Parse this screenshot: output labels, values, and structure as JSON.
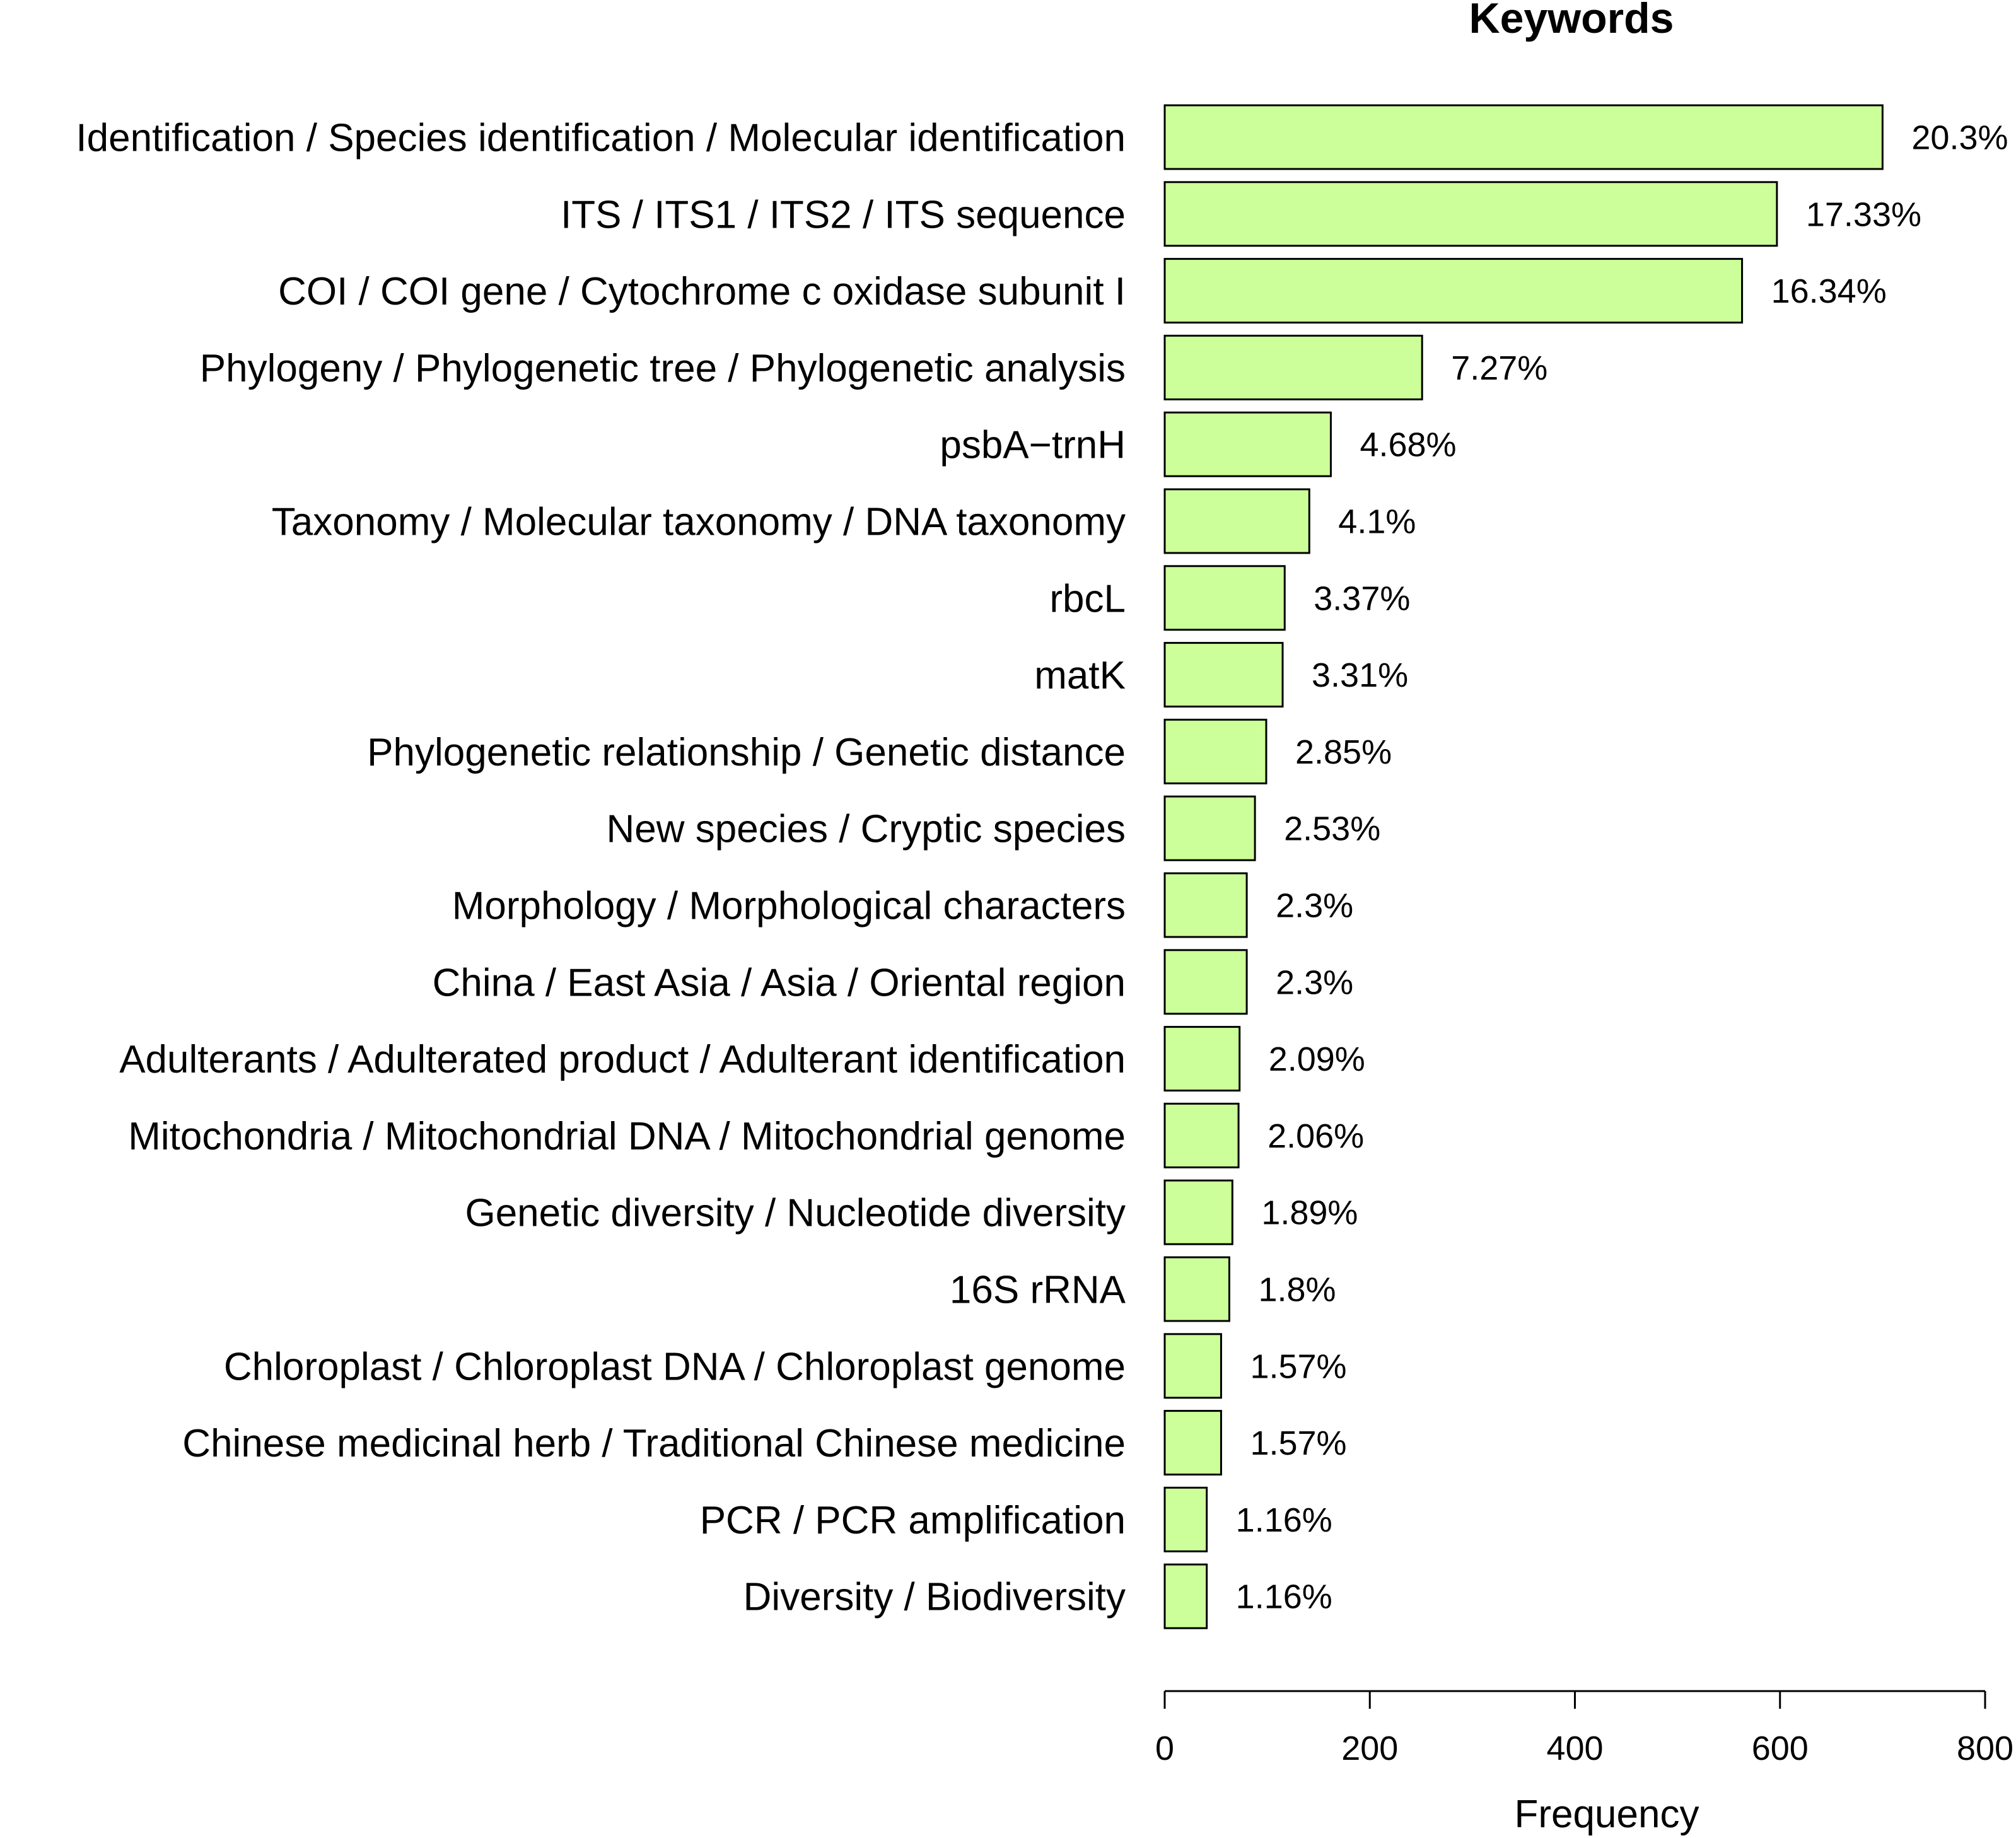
{
  "chart_data": {
    "type": "bar",
    "orientation": "horizontal",
    "title": "Keywords",
    "xlabel": "Frequency",
    "ylabel": "",
    "xlim": [
      0,
      800
    ],
    "x_ticks": [
      "0",
      "200",
      "400",
      "600",
      "800"
    ],
    "grid": false,
    "legend": "none",
    "bar_color": "#ccff99",
    "bar_edge_color": "#000000",
    "categories": [
      "Identification / Species identification / Molecular identification",
      "ITS / ITS1 / ITS2 / ITS sequence",
      "COI / COI gene / Cytochrome c oxidase subunit I",
      "Phylogeny / Phylogenetic tree / Phylogenetic analysis",
      "psbA−trnH",
      "Taxonomy / Molecular taxonomy / DNA taxonomy",
      "rbcL",
      "matK",
      "Phylogenetic relationship / Genetic distance",
      "New species / Cryptic species",
      "Morphology / Morphological characters",
      "China / East Asia / Asia / Oriental region",
      "Adulterants / Adulterated product / Adulterant identification",
      "Mitochondria / Mitochondrial DNA / Mitochondrial genome",
      "Genetic diversity / Nucleotide diversity",
      "16S rRNA",
      "Chloroplast / Chloroplast DNA / Chloroplast genome",
      "Chinese medicinal herb / Traditional Chinese medicine",
      "PCR / PCR amplification",
      "Diversity / Biodiversity"
    ],
    "values": [
      700,
      597,
      563,
      251,
      162,
      141,
      117,
      115,
      99,
      88,
      80,
      80,
      73,
      72,
      66,
      63,
      55,
      55,
      41,
      41
    ],
    "labels": [
      "20.3%",
      "17.33%",
      "16.34%",
      "7.27%",
      "4.68%",
      "4.1%",
      "3.37%",
      "3.31%",
      "2.85%",
      "2.53%",
      "2.3%",
      "2.3%",
      "2.09%",
      "2.06%",
      "1.89%",
      "1.8%",
      "1.57%",
      "1.57%",
      "1.16%",
      "1.16%"
    ]
  }
}
